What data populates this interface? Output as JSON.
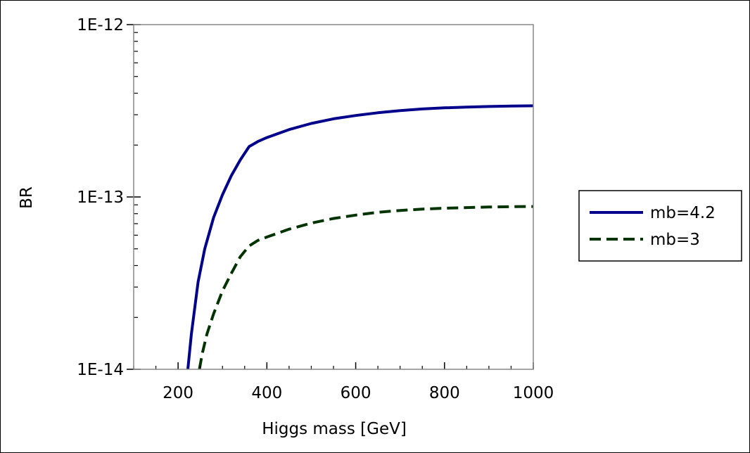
{
  "chart_data": {
    "type": "line",
    "title": "",
    "xlabel": "Higgs mass [GeV]",
    "ylabel": "BR",
    "xlim": [
      100,
      1000
    ],
    "ylim": [
      1e-14,
      1e-12
    ],
    "yscale": "log",
    "grid": false,
    "legend_position": "right",
    "x_ticks": [
      {
        "value": 200,
        "label": "200"
      },
      {
        "value": 400,
        "label": "400"
      },
      {
        "value": 600,
        "label": "600"
      },
      {
        "value": 800,
        "label": "800"
      },
      {
        "value": 1000,
        "label": "1000"
      }
    ],
    "y_ticks": [
      {
        "value": 1e-14,
        "label": "1E-14"
      },
      {
        "value": 1e-13,
        "label": "1E-13"
      },
      {
        "value": 1e-12,
        "label": "1E-12"
      }
    ],
    "series": [
      {
        "name": "mb=4.2",
        "color": "#00008b",
        "style": "solid",
        "x": [
          222,
          230,
          245,
          260,
          280,
          300,
          320,
          340,
          360,
          380,
          400,
          450,
          500,
          550,
          600,
          650,
          700,
          750,
          800,
          850,
          900,
          950,
          1000
        ],
        "y": [
          1e-14,
          1.6e-14,
          3.2e-14,
          5e-14,
          7.6e-14,
          1.03e-13,
          1.33e-13,
          1.64e-13,
          1.96e-13,
          2.1e-13,
          2.21e-13,
          2.46e-13,
          2.67e-13,
          2.84e-13,
          2.97e-13,
          3.08e-13,
          3.17e-13,
          3.24e-13,
          3.29e-13,
          3.32e-13,
          3.35e-13,
          3.37e-13,
          3.38e-13
        ]
      },
      {
        "name": "mb=3",
        "color": "#003300",
        "style": "dashed",
        "x": [
          248,
          255,
          265,
          280,
          300,
          320,
          340,
          360,
          380,
          400,
          450,
          500,
          550,
          600,
          650,
          700,
          750,
          800,
          850,
          900,
          950,
          1000
        ],
        "y": [
          1e-14,
          1.25e-14,
          1.6e-14,
          2.1e-14,
          2.85e-14,
          3.6e-14,
          4.5e-14,
          5.2e-14,
          5.6e-14,
          5.85e-14,
          6.5e-14,
          7.05e-14,
          7.5e-14,
          7.85e-14,
          8.15e-14,
          8.35e-14,
          8.5e-14,
          8.6e-14,
          8.68e-14,
          8.74e-14,
          8.78e-14,
          8.8e-14
        ]
      }
    ]
  }
}
